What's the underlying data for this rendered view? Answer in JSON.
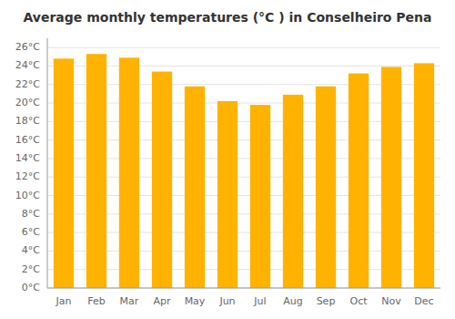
{
  "chart_data": {
    "type": "bar",
    "title": "Average monthly temperatures (°C ) in Conselheiro Pena",
    "categories": [
      "Jan",
      "Feb",
      "Mar",
      "Apr",
      "May",
      "Jun",
      "Jul",
      "Aug",
      "Sep",
      "Oct",
      "Nov",
      "Dec"
    ],
    "values": [
      24.8,
      25.3,
      24.9,
      23.4,
      21.8,
      20.2,
      19.8,
      20.9,
      21.8,
      23.2,
      23.9,
      24.3
    ],
    "color": "#FFB300",
    "ylim": [
      0,
      27
    ],
    "yticks": [
      {
        "value": 0,
        "label": "0°C"
      },
      {
        "value": 2,
        "label": "2°C"
      },
      {
        "value": 4,
        "label": "4°C"
      },
      {
        "value": 6,
        "label": "6°C"
      },
      {
        "value": 8,
        "label": "8°C"
      },
      {
        "value": 10,
        "label": "10°C"
      },
      {
        "value": 12,
        "label": "12°C"
      },
      {
        "value": 14,
        "label": "14°C"
      },
      {
        "value": 16,
        "label": "16°C"
      },
      {
        "value": 18,
        "label": "18°C"
      },
      {
        "value": 20,
        "label": "20°C"
      },
      {
        "value": 22,
        "label": "22°C"
      },
      {
        "value": 24,
        "label": "24°C"
      },
      {
        "value": 26,
        "label": "26°C"
      }
    ],
    "grid": true
  }
}
